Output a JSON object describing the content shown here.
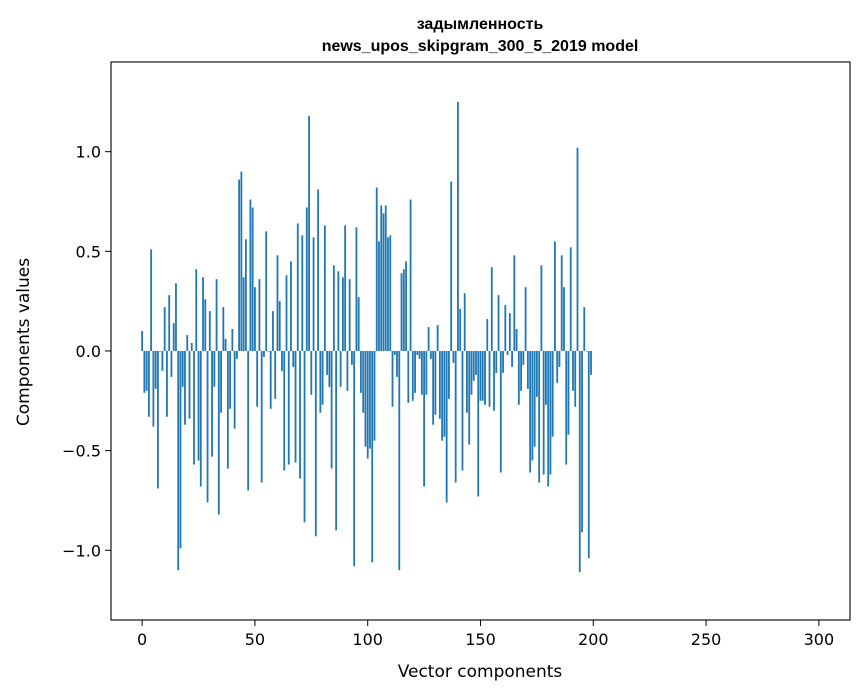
{
  "chart_data": {
    "type": "bar",
    "title": "задымленность",
    "subtitle": "news_upos_skipgram_300_5_2019 model",
    "xlabel": "Vector components",
    "ylabel": "Components values",
    "xlim": [
      -13.8,
      313.8
    ],
    "ylim": [
      -1.35,
      1.45
    ],
    "xticks": [
      0,
      50,
      100,
      150,
      200,
      250,
      300
    ],
    "xtick_labels": [
      "0",
      "50",
      "100",
      "150",
      "200",
      "250",
      "300"
    ],
    "yticks": [
      -1.0,
      -0.5,
      0.0,
      0.5,
      1.0
    ],
    "ytick_labels": [
      "−1.0",
      "−0.5",
      "0.0",
      "0.5",
      "1.0"
    ],
    "bar_color": "#1f77b4",
    "grid": false,
    "values": [
      0.1,
      -0.21,
      -0.2,
      -0.33,
      0.51,
      -0.38,
      -0.19,
      -0.69,
      0.0,
      -0.1,
      0.22,
      -0.33,
      0.28,
      -0.13,
      0.14,
      0.34,
      -1.1,
      -0.99,
      -0.18,
      -0.37,
      0.08,
      -0.34,
      0.04,
      -0.57,
      0.41,
      -0.55,
      -0.68,
      0.37,
      0.26,
      -0.76,
      0.2,
      -0.53,
      -0.18,
      0.36,
      -0.82,
      -0.31,
      0.22,
      0.06,
      -0.59,
      -0.29,
      0.11,
      -0.39,
      -0.04,
      0.86,
      0.9,
      0.37,
      0.56,
      -0.7,
      0.76,
      0.72,
      0.32,
      -0.28,
      0.36,
      -0.66,
      -0.03,
      0.6,
      0.0,
      -0.29,
      0.2,
      -0.24,
      0.48,
      0.25,
      -0.1,
      -0.6,
      0.38,
      -0.57,
      0.45,
      -0.08,
      -0.56,
      0.64,
      -0.64,
      0.58,
      -0.86,
      0.72,
      1.18,
      -0.22,
      0.57,
      -0.93,
      0.81,
      -0.31,
      -0.27,
      0.63,
      -0.12,
      -0.18,
      -0.59,
      0.43,
      -0.9,
      0.4,
      -0.18,
      0.37,
      0.63,
      -0.2,
      0.36,
      -0.07,
      -1.08,
      0.62,
      0.27,
      -0.21,
      -0.31,
      -0.48,
      -0.54,
      -0.49,
      -1.06,
      -0.45,
      0.82,
      0.55,
      0.73,
      0.69,
      0.73,
      0.57,
      0.58,
      -0.28,
      -0.02,
      -0.13,
      -1.1,
      0.39,
      0.41,
      0.45,
      -0.26,
      0.76,
      -0.25,
      -0.21,
      -0.02,
      -0.04,
      -0.22,
      -0.68,
      -0.22,
      0.12,
      -0.04,
      -0.37,
      -0.32,
      0.13,
      -0.34,
      -0.45,
      -0.43,
      -0.76,
      -0.24,
      0.85,
      -0.06,
      -0.66,
      1.25,
      0.21,
      -0.6,
      0.29,
      -0.31,
      -0.47,
      -0.22,
      -0.15,
      -0.12,
      -0.73,
      -0.25,
      -0.25,
      -0.27,
      0.16,
      -0.28,
      0.42,
      -0.3,
      -0.11,
      0.28,
      -0.61,
      -0.11,
      0.23,
      -0.02,
      0.19,
      -0.08,
      0.48,
      0.11,
      -0.27,
      -0.2,
      -0.07,
      0.32,
      -0.19,
      -0.61,
      -0.55,
      -0.48,
      -0.23,
      -0.66,
      0.43,
      -0.62,
      -0.27,
      -0.68,
      -0.62,
      -0.43,
      0.55,
      -0.16,
      -0.08,
      0.48,
      0.32,
      -0.57,
      -0.42,
      0.52,
      -0.2,
      -0.28,
      1.02,
      -1.11,
      -0.91,
      0.22,
      0.0,
      -1.04,
      -0.12
    ]
  }
}
